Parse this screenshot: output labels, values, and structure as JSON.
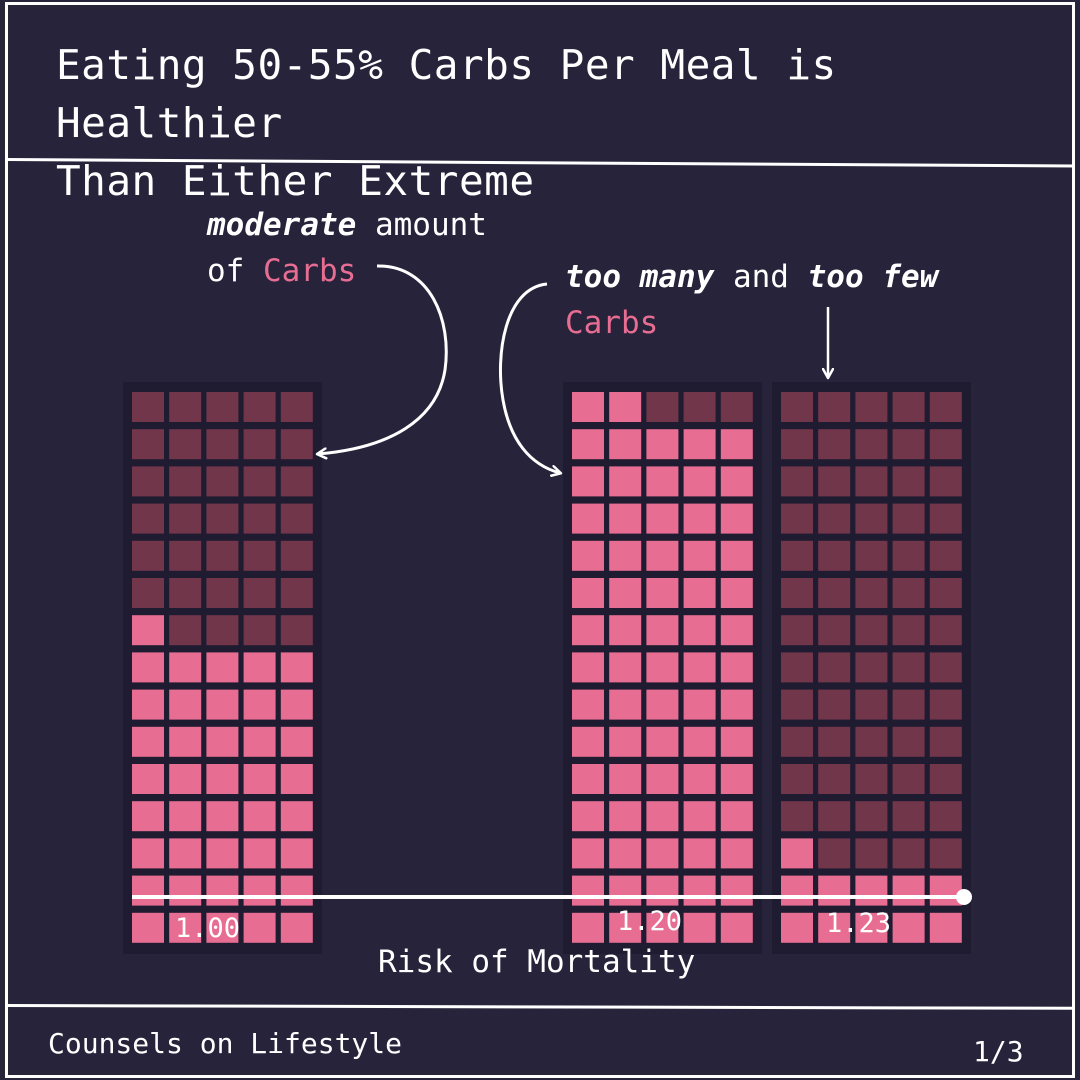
{
  "header": {
    "title_line1": "Eating 50-55% Carbs Per Meal is Healthier",
    "title_line2": "Than Either Extreme"
  },
  "annotations": {
    "moderate": {
      "em": "moderate",
      "text1": " amount",
      "text2": "of ",
      "carbs": "Carbs"
    },
    "extremes": {
      "em1": "too many",
      "mid": " and ",
      "em2": "too few",
      "carbs": "Carbs"
    }
  },
  "footer": {
    "brand": "Counsels on Lifestyle",
    "page": "1/3"
  },
  "colors": {
    "background": "#27233a",
    "panel": "#1f1b30",
    "filled": "#e76e92",
    "empty": "#72364b",
    "line": "#ffffff"
  },
  "chart_data": {
    "type": "bar",
    "style": "waffle",
    "grid": {
      "columns": 5,
      "rows": 15
    },
    "categories": [
      "moderate amount of Carbs",
      "too many Carbs",
      "too few Carbs"
    ],
    "series": [
      {
        "values": [
          1.0,
          1.2,
          1.23
        ]
      }
    ],
    "filled_cells": [
      41,
      72,
      11
    ],
    "tick_labels": [
      "1.00",
      "1.20",
      "1.23"
    ],
    "xlabel": "Risk of Mortality",
    "title": "Eating 50-55% Carbs Per Meal is Healthier Than Either Extreme"
  }
}
